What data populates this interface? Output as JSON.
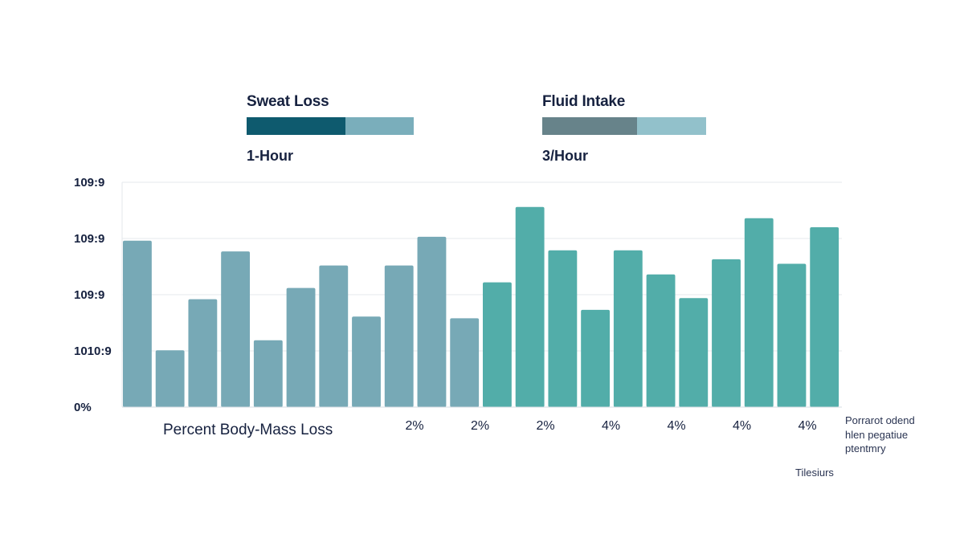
{
  "legend": [
    {
      "title": "Sweat Loss",
      "subtitle": "1-Hour",
      "colors": [
        "#0e5a6e",
        "#7aaebb"
      ],
      "split": 0.59
    },
    {
      "title": "Fluid Intake",
      "subtitle": "3/Hour",
      "colors": [
        "#67838a",
        "#92c1cb"
      ],
      "split": 0.58
    }
  ],
  "chart_data": {
    "type": "bar",
    "title": "",
    "xlabel": "Percent Body-Mass Loss",
    "ylabel": "",
    "y_tick_labels": [
      "0%",
      "1010:9",
      "109:9",
      "109:9",
      "109:9"
    ],
    "ylim": [
      0,
      4
    ],
    "x_tick_labels": [
      "2%",
      "2%",
      "2%",
      "4%",
      "4%",
      "4%",
      "4%"
    ],
    "grid": true,
    "series": [
      {
        "name": "Sweat Loss",
        "color": "#77a9b6",
        "values": [
          2.96,
          1.01,
          1.92,
          2.77,
          1.19,
          2.12,
          2.52,
          1.61,
          2.52,
          3.03,
          1.58
        ]
      },
      {
        "name": "Fluid Intake",
        "color": "#52ada9",
        "values": [
          2.22,
          3.56,
          2.79,
          1.73,
          2.79,
          2.36,
          1.94,
          2.63,
          3.36,
          2.55,
          3.2
        ]
      }
    ],
    "annotations": [
      "Porrarot odend",
      "hlen pegatiue",
      "ptentmry",
      "Tilesiurs"
    ]
  }
}
